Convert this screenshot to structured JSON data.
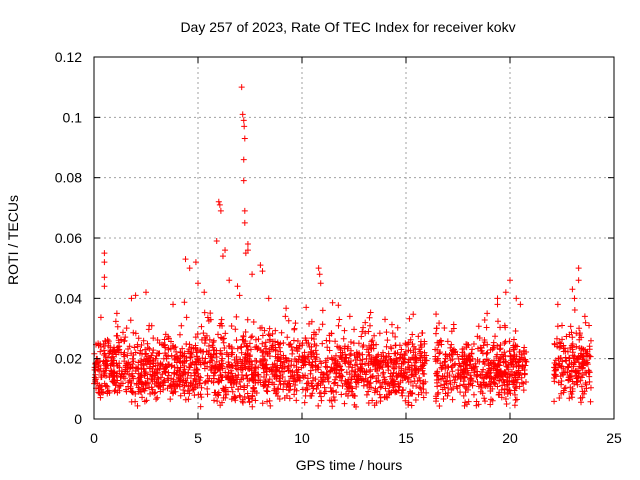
{
  "chart_data": {
    "type": "scatter",
    "title": "Day 257 of 2023, Rate Of TEC Index for receiver kokv",
    "xlabel": "GPS time / hours",
    "ylabel": "ROTI / TECUs",
    "xlim": [
      0,
      25
    ],
    "ylim": [
      0,
      0.12
    ],
    "x_ticks": [
      0,
      5,
      10,
      15,
      20,
      25
    ],
    "x_tick_labels": [
      "0",
      "5",
      "10",
      "15",
      "20",
      "25"
    ],
    "y_ticks": [
      0,
      0.02,
      0.04,
      0.06,
      0.08,
      0.1,
      0.12
    ],
    "y_tick_labels": [
      "0",
      "0.02",
      "0.04",
      "0.06",
      "0.08",
      "0.1",
      "0.12"
    ],
    "grid": true,
    "marker": "+",
    "color": "#ff0000",
    "series": [
      {
        "name": "ROTI",
        "segments": [
          {
            "x_start": 0.0,
            "x_end": 20.8,
            "base": 0.016,
            "spread": 0.012
          },
          {
            "x_start": 22.1,
            "x_end": 23.9,
            "base": 0.018,
            "spread": 0.012
          }
        ],
        "points": [
          [
            0.5,
            0.055
          ],
          [
            0.5,
            0.052
          ],
          [
            0.5,
            0.047
          ],
          [
            0.5,
            0.044
          ],
          [
            1.1,
            0.035
          ],
          [
            1.8,
            0.04
          ],
          [
            2.0,
            0.041
          ],
          [
            2.5,
            0.042
          ],
          [
            3.8,
            0.038
          ],
          [
            4.4,
            0.053
          ],
          [
            4.6,
            0.05
          ],
          [
            4.9,
            0.052
          ],
          [
            5.0,
            0.045
          ],
          [
            5.3,
            0.042
          ],
          [
            5.9,
            0.059
          ],
          [
            6.0,
            0.072
          ],
          [
            6.05,
            0.071
          ],
          [
            6.1,
            0.069
          ],
          [
            6.2,
            0.054
          ],
          [
            6.3,
            0.056
          ],
          [
            6.5,
            0.046
          ],
          [
            6.9,
            0.044
          ],
          [
            7.0,
            0.041
          ],
          [
            7.1,
            0.11
          ],
          [
            7.15,
            0.101
          ],
          [
            7.2,
            0.099
          ],
          [
            7.22,
            0.097
          ],
          [
            7.25,
            0.093
          ],
          [
            7.2,
            0.086
          ],
          [
            7.2,
            0.079
          ],
          [
            7.25,
            0.069
          ],
          [
            7.25,
            0.065
          ],
          [
            7.3,
            0.055
          ],
          [
            7.4,
            0.058
          ],
          [
            7.4,
            0.056
          ],
          [
            7.6,
            0.048
          ],
          [
            8.0,
            0.051
          ],
          [
            8.1,
            0.049
          ],
          [
            8.4,
            0.04
          ],
          [
            9.2,
            0.034
          ],
          [
            10.2,
            0.037
          ],
          [
            10.8,
            0.05
          ],
          [
            10.85,
            0.048
          ],
          [
            10.9,
            0.045
          ],
          [
            11.0,
            0.036
          ],
          [
            12.3,
            0.034
          ],
          [
            13.2,
            0.029
          ],
          [
            15.3,
            0.028
          ],
          [
            17.3,
            0.03
          ],
          [
            18.9,
            0.035
          ],
          [
            19.4,
            0.04
          ],
          [
            19.4,
            0.038
          ],
          [
            19.8,
            0.042
          ],
          [
            20.0,
            0.046
          ],
          [
            20.3,
            0.04
          ],
          [
            20.5,
            0.038
          ],
          [
            22.3,
            0.038
          ],
          [
            22.5,
            0.031
          ],
          [
            23.0,
            0.043
          ],
          [
            23.1,
            0.04
          ],
          [
            23.3,
            0.05
          ],
          [
            23.3,
            0.046
          ],
          [
            23.6,
            0.034
          ],
          [
            23.8,
            0.031
          ]
        ]
      }
    ]
  }
}
